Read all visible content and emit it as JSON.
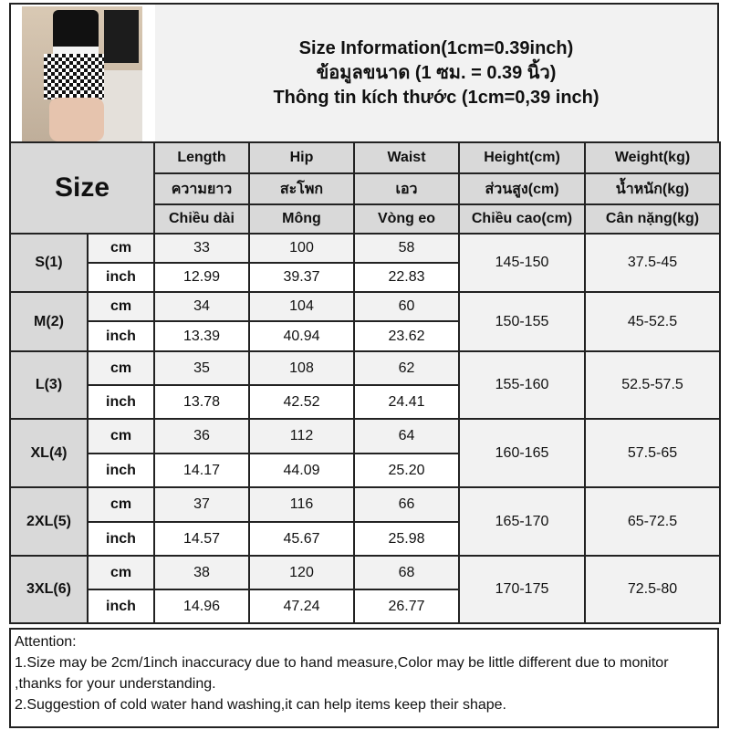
{
  "title": {
    "en": "Size Information(1cm=0.39inch)",
    "th": "ข้อมูลขนาด (1 ซม. = 0.39 นิ้ว)",
    "vi": "Thông tin kích thước (1cm=0,39 inch)"
  },
  "size_header": "Size",
  "columns": [
    {
      "en": "Length",
      "th": "ความยาว",
      "vi": "Chiều dài"
    },
    {
      "en": "Hip",
      "th": "สะโพก",
      "vi": "Mông"
    },
    {
      "en": "Waist",
      "th": "เอว",
      "vi": "Vòng eo"
    },
    {
      "en": "Height(cm)",
      "th": "ส่วนสูง(cm)",
      "vi": "Chiều cao(cm)"
    },
    {
      "en": "Weight(kg)",
      "th": "น้ำหนัก(kg)",
      "vi": "Cân nặng(kg)"
    }
  ],
  "units": {
    "cm": "cm",
    "inch": "inch"
  },
  "sizes": [
    {
      "label": "S(1)",
      "cm": [
        "33",
        "100",
        "58"
      ],
      "inch": [
        "12.99",
        "39.37",
        "22.83"
      ],
      "height": "145-150",
      "weight": "37.5-45"
    },
    {
      "label": "M(2)",
      "cm": [
        "34",
        "104",
        "60"
      ],
      "inch": [
        "13.39",
        "40.94",
        "23.62"
      ],
      "height": "150-155",
      "weight": "45-52.5"
    },
    {
      "label": "L(3)",
      "cm": [
        "35",
        "108",
        "62"
      ],
      "inch": [
        "13.78",
        "42.52",
        "24.41"
      ],
      "height": "155-160",
      "weight": "52.5-57.5"
    },
    {
      "label": "XL(4)",
      "cm": [
        "36",
        "112",
        "64"
      ],
      "inch": [
        "14.17",
        "44.09",
        "25.20"
      ],
      "height": "160-165",
      "weight": "57.5-65"
    },
    {
      "label": "2XL(5)",
      "cm": [
        "37",
        "116",
        "66"
      ],
      "inch": [
        "14.57",
        "45.67",
        "25.98"
      ],
      "height": "165-170",
      "weight": "65-72.5"
    },
    {
      "label": "3XL(6)",
      "cm": [
        "38",
        "120",
        "68"
      ],
      "inch": [
        "14.96",
        "47.24",
        "26.77"
      ],
      "height": "170-175",
      "weight": "72.5-80"
    }
  ],
  "attention": {
    "heading": "Attention:",
    "line1": "1.Size may be 2cm/1inch inaccuracy due to hand measure,Color may be little different due to monitor",
    "line1b": ",thanks for your understanding.",
    "line2": "2.Suggestion of cold water hand washing,it can help items keep their shape."
  }
}
